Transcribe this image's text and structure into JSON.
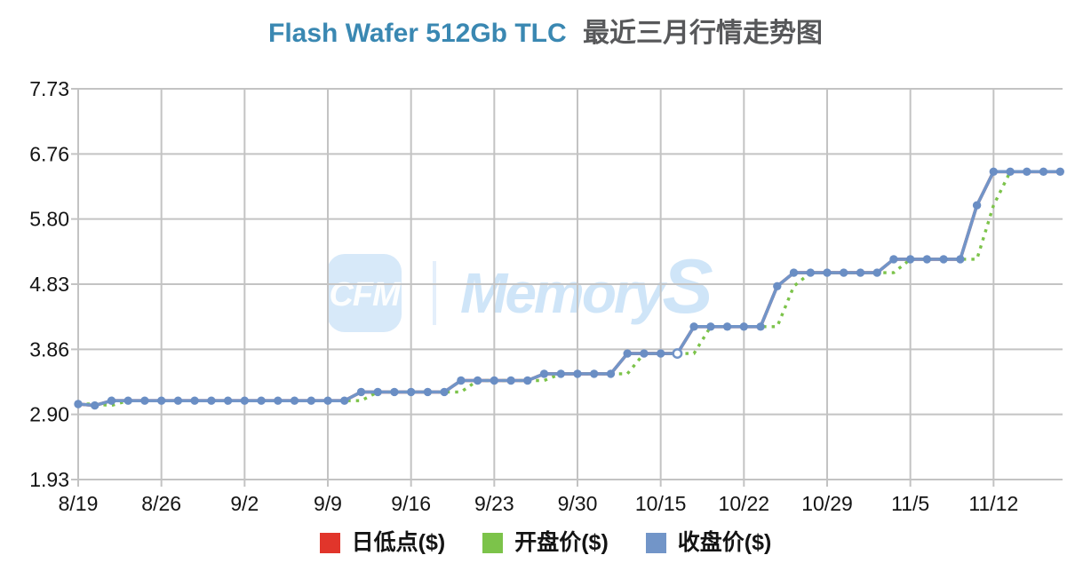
{
  "title": {
    "en": "Flash Wafer 512Gb TLC",
    "zh": "最近三月行情走势图"
  },
  "watermark": {
    "logo_text": "CFM",
    "brand_text": "MemoryS",
    "box_color": "#d7e9f9",
    "text_color": "#cfe5f8",
    "logo_letter_color": "#fdfefe",
    "divider_color": "#e4effb"
  },
  "legend": [
    {
      "label": "日低点($)",
      "color": "#e1352b"
    },
    {
      "label": "开盘价($)",
      "color": "#7cc34a"
    },
    {
      "label": "收盘价($)",
      "color": "#7295c8"
    }
  ],
  "chart_data": {
    "type": "line",
    "title": "Flash Wafer 512Gb TLC 最近三月行情走势图",
    "xlabel": "",
    "ylabel": "",
    "grid": true,
    "legend_position": "bottom",
    "ylim": [
      1.93,
      7.73
    ],
    "y_ticks": [
      "7.73",
      "6.76",
      "5.80",
      "4.83",
      "3.86",
      "2.90",
      "1.93"
    ],
    "x_tick_labels": [
      "8/19",
      "8/26",
      "9/2",
      "9/9",
      "9/16",
      "9/23",
      "9/30",
      "10/15",
      "10/22",
      "10/29",
      "11/5",
      "11/12"
    ],
    "x_tick_every": 5,
    "n_points": 60,
    "axis_text_color": "#141414",
    "grid_color": "#c3c3c3",
    "hollow_marker_index": 36,
    "series": [
      {
        "name": "日低点($)",
        "color": "#e1352b",
        "style": "solid",
        "visually_distinct": false,
        "note": "not visually distinguishable in the pixels; fully overlapped by the close-price line",
        "values": [
          3.05,
          3.03,
          3.1,
          3.1,
          3.1,
          3.1,
          3.1,
          3.1,
          3.1,
          3.1,
          3.1,
          3.1,
          3.1,
          3.1,
          3.1,
          3.1,
          3.1,
          3.23,
          3.23,
          3.23,
          3.23,
          3.23,
          3.23,
          3.4,
          3.4,
          3.4,
          3.4,
          3.4,
          3.5,
          3.5,
          3.5,
          3.5,
          3.5,
          3.8,
          3.8,
          3.8,
          3.8,
          4.2,
          4.2,
          4.2,
          4.2,
          4.2,
          4.8,
          5.0,
          5.0,
          5.0,
          5.0,
          5.0,
          5.0,
          5.2,
          5.2,
          5.2,
          5.2,
          5.2,
          6.0,
          6.5,
          6.5,
          6.5,
          6.5,
          6.5
        ]
      },
      {
        "name": "开盘价($)",
        "color": "#7cc34a",
        "style": "dotted",
        "visually_distinct": true,
        "values": [
          3.05,
          3.05,
          3.03,
          3.1,
          3.1,
          3.1,
          3.1,
          3.1,
          3.1,
          3.1,
          3.1,
          3.1,
          3.1,
          3.1,
          3.1,
          3.1,
          3.1,
          3.1,
          3.23,
          3.23,
          3.23,
          3.23,
          3.23,
          3.23,
          3.4,
          3.4,
          3.4,
          3.4,
          3.4,
          3.5,
          3.5,
          3.5,
          3.5,
          3.5,
          3.8,
          3.8,
          3.8,
          3.8,
          4.2,
          4.2,
          4.2,
          4.2,
          4.2,
          4.8,
          5.0,
          5.0,
          5.0,
          5.0,
          5.0,
          5.0,
          5.2,
          5.2,
          5.2,
          5.2,
          5.2,
          6.0,
          6.5,
          6.5,
          6.5,
          6.5
        ]
      },
      {
        "name": "收盘价($)",
        "color": "#7295c8",
        "style": "solid-with-dots",
        "marker_color": "#6a8ec4",
        "visually_distinct": true,
        "values": [
          3.05,
          3.03,
          3.1,
          3.1,
          3.1,
          3.1,
          3.1,
          3.1,
          3.1,
          3.1,
          3.1,
          3.1,
          3.1,
          3.1,
          3.1,
          3.1,
          3.1,
          3.23,
          3.23,
          3.23,
          3.23,
          3.23,
          3.23,
          3.4,
          3.4,
          3.4,
          3.4,
          3.4,
          3.5,
          3.5,
          3.5,
          3.5,
          3.5,
          3.8,
          3.8,
          3.8,
          3.8,
          4.2,
          4.2,
          4.2,
          4.2,
          4.2,
          4.8,
          5.0,
          5.0,
          5.0,
          5.0,
          5.0,
          5.0,
          5.2,
          5.2,
          5.2,
          5.2,
          5.2,
          6.0,
          6.5,
          6.5,
          6.5,
          6.5,
          6.5
        ]
      }
    ]
  }
}
